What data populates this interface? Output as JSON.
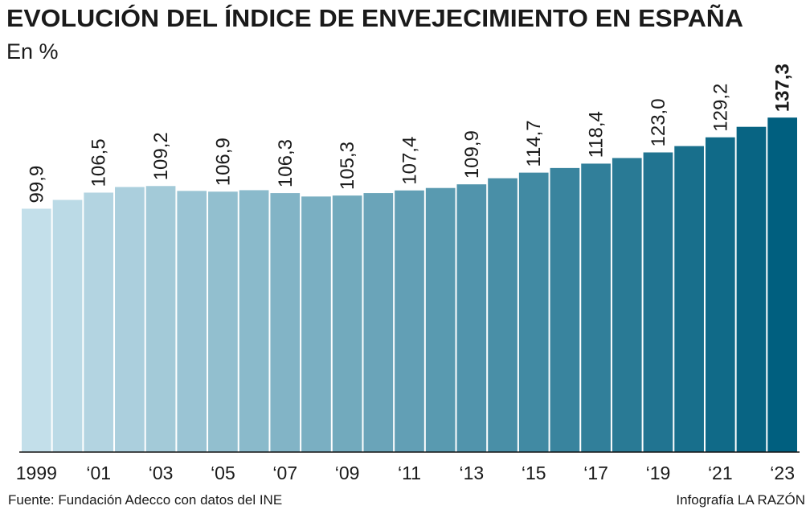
{
  "chart_data": {
    "type": "bar",
    "title": "EVOLUCIÓN DEL ÍNDICE DE ENVEJECIMIENTO EN ESPAÑA",
    "subtitle": "En %",
    "source": "Fuente: Fundación Adecco con datos del INE",
    "credit": "Infografía LA RAZÓN",
    "categories": [
      "1999",
      null,
      "‘01",
      null,
      "‘03",
      null,
      "‘05",
      null,
      "‘07",
      null,
      "‘09",
      null,
      "‘11",
      null,
      "‘13",
      null,
      "‘15",
      null,
      "‘17",
      null,
      "‘19",
      null,
      "‘21",
      null,
      "‘23"
    ],
    "values": [
      99.9,
      103.5,
      106.5,
      108.8,
      109.2,
      107.2,
      106.9,
      107.5,
      106.3,
      104.9,
      105.3,
      106.3,
      107.4,
      108.4,
      109.9,
      112.4,
      114.7,
      116.6,
      118.4,
      120.7,
      123.0,
      125.6,
      129.2,
      133.5,
      137.3
    ],
    "value_labels": [
      "99,9",
      null,
      "106,5",
      null,
      "109,2",
      null,
      "106,9",
      null,
      "106,3",
      null,
      "105,3",
      null,
      "107,4",
      null,
      "109,9",
      null,
      "114,7",
      null,
      "118,4",
      null,
      "123,0",
      null,
      "129,2",
      null,
      "137,3"
    ],
    "color_range": [
      "#c3dfea",
      "#005f7f"
    ],
    "ylim": [
      0,
      140
    ],
    "grid": false
  }
}
